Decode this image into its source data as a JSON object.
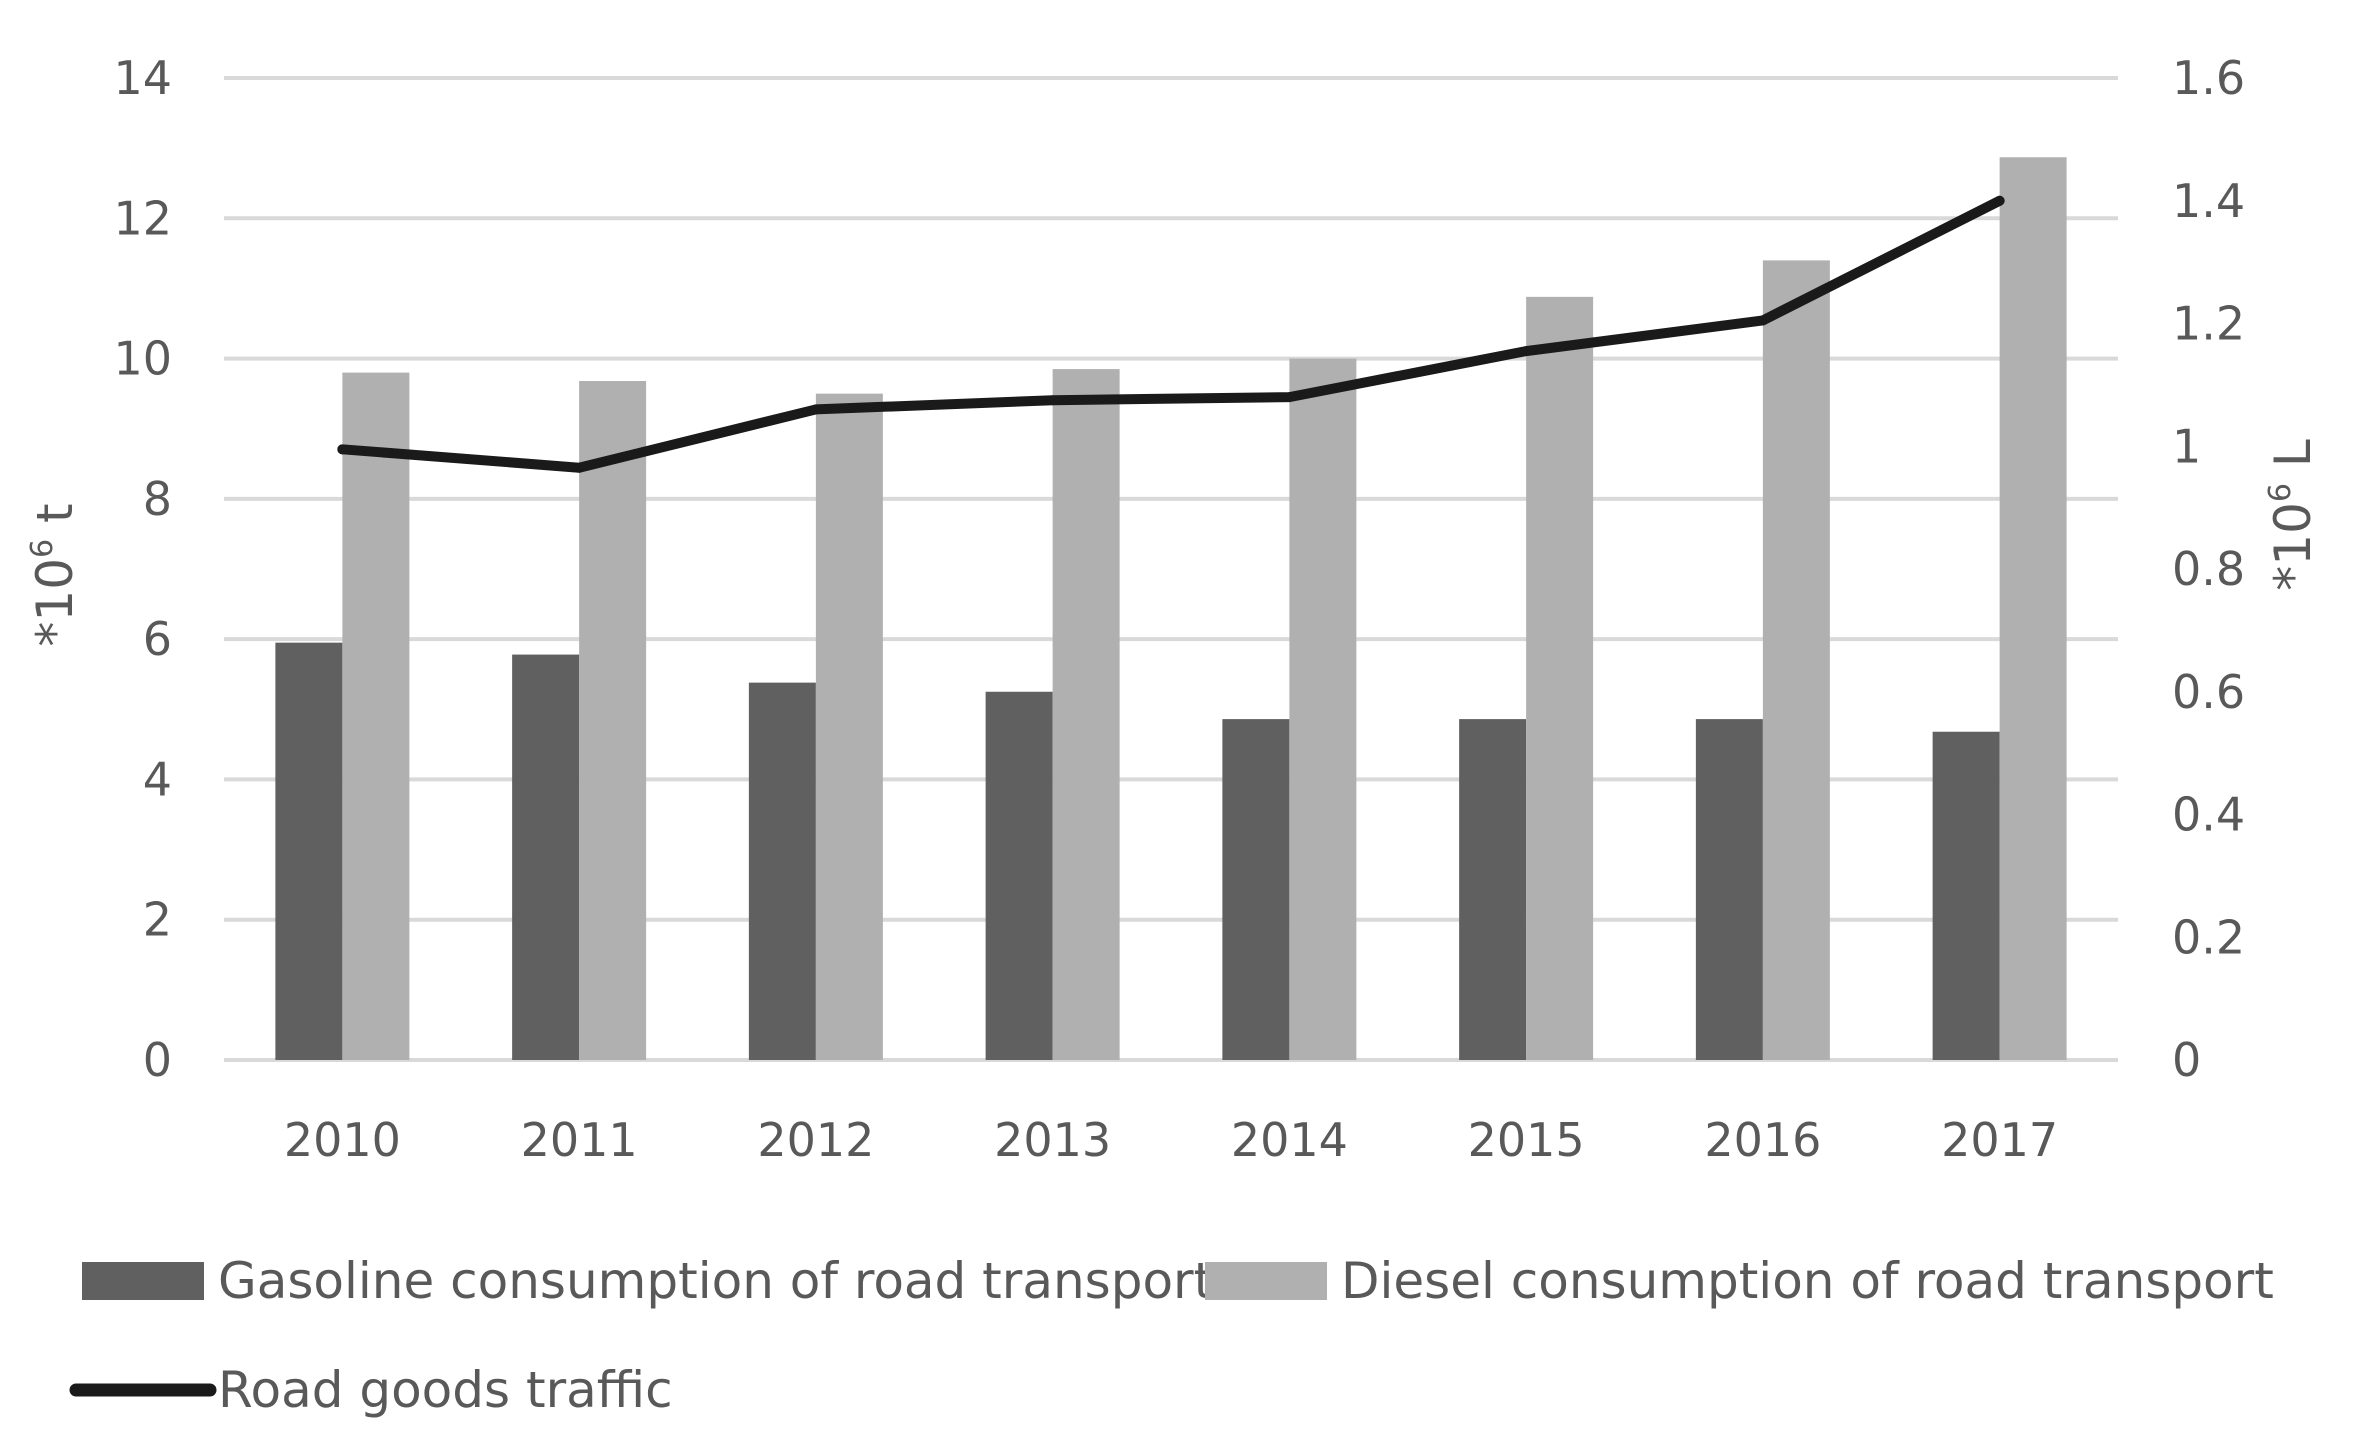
{
  "chart_data": {
    "type": "bar",
    "categories": [
      "2010",
      "2011",
      "2012",
      "2013",
      "2014",
      "2015",
      "2016",
      "2017"
    ],
    "series": [
      {
        "name": "Gasoline consumption of road transport",
        "chart_type": "bar",
        "axis": "left",
        "color": "#606060",
        "values": [
          5.95,
          5.78,
          5.38,
          5.25,
          4.86,
          4.86,
          4.86,
          4.68
        ]
      },
      {
        "name": "Diesel consumption of road transport",
        "chart_type": "bar",
        "axis": "left",
        "color": "#b0b0b0",
        "values": [
          9.8,
          9.68,
          9.5,
          9.85,
          10.0,
          10.88,
          11.4,
          12.87
        ]
      },
      {
        "name": "Road goods traffic",
        "chart_type": "line",
        "axis": "right",
        "color": "#1a1a1a",
        "values": [
          0.995,
          0.965,
          1.06,
          1.075,
          1.08,
          1.155,
          1.205,
          1.4
        ]
      }
    ],
    "y_left": {
      "label_prefix": "*10",
      "label_exp": "6",
      "label_suffix": " t",
      "ylim": [
        0,
        14
      ],
      "ticks": [
        "0",
        "2",
        "4",
        "6",
        "8",
        "10",
        "12",
        "14"
      ]
    },
    "y_right": {
      "label_prefix": "*10",
      "label_exp": "6",
      "label_suffix": " L",
      "ylim": [
        0,
        1.6
      ],
      "ticks": [
        "0",
        "0.2",
        "0.4",
        "0.6",
        "0.8",
        "1",
        "1.2",
        "1.4",
        "1.6"
      ]
    },
    "grid": true,
    "gridline_color": "#d9d9d9",
    "legend_position": "bottom-left"
  }
}
